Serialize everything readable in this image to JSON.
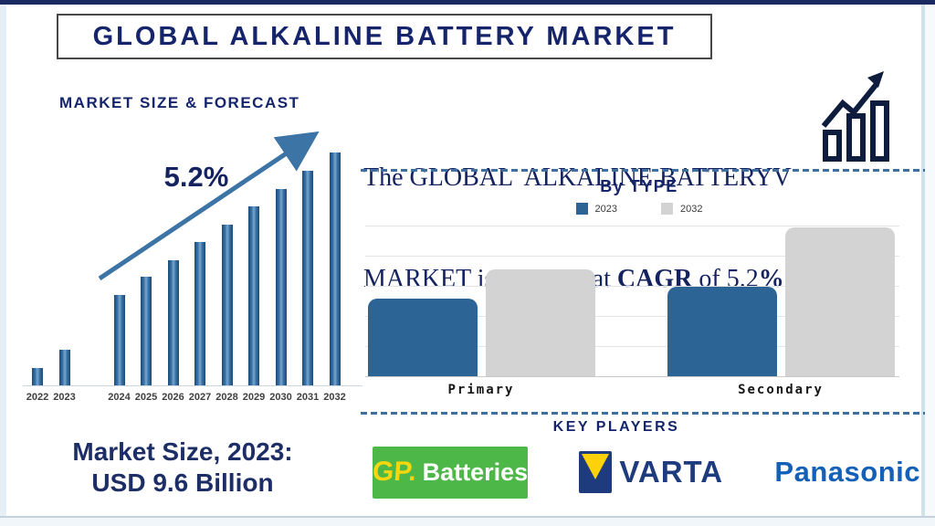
{
  "page": {
    "title": "GLOBAL ALKALINE BATTERY MARKET"
  },
  "left": {
    "section_title": "MARKET SIZE & FORECAST",
    "cagr_label": "5.2%",
    "market_size_line1": "Market Size, 2023:",
    "market_size_line2": "USD 9.6 Billion"
  },
  "right": {
    "growth_line1": "The GLOBAL  ALKALINE BATTERYV",
    "growth_line2_prefix": "MARKET is growing at ",
    "growth_line2_bold": "CAGR",
    "growth_line2_mid": " of 5.2",
    "growth_line2_suffix_bold": "%",
    "by_type_title": "By TYPE",
    "key_players_title": "KEY PLAYERS"
  },
  "logos": {
    "gp": {
      "prefix": "GP.",
      "suffix": "Batteries",
      "bg": "#4db848",
      "prefix_color": "#f6d60e",
      "suffix_color": "#ffffff"
    },
    "varta": {
      "text": "VARTA",
      "color": "#1e3c7d",
      "icon_bg": "#1e3c7d",
      "icon_triangle": "#ffd10a"
    },
    "panasonic": {
      "text": "Panasonic",
      "color": "#1560b7"
    }
  },
  "colors": {
    "navy_text": "#15246b",
    "bar_blue": "#2c6496",
    "bar_gray": "#d3d3d3",
    "dash_blue": "#3f6f9e",
    "arrow_blue": "#3d74a6"
  },
  "chart_data": [
    {
      "type": "bar",
      "title": "MARKET SIZE & FORECAST",
      "categories": [
        "2022",
        "2023",
        "2024",
        "2025",
        "2026",
        "2027",
        "2028",
        "2029",
        "2030",
        "2031",
        "2032"
      ],
      "values": [
        7.5,
        15.3,
        38.8,
        46.7,
        53.7,
        61.6,
        69.0,
        76.9,
        84.3,
        92.2,
        100
      ],
      "annotation": "5.2%",
      "known_point": "Market Size 2023 = USD 9.6 Billion, CAGR 5.2%",
      "note": "stylized forecast bars, no y-axis shown; values are relative heights with 2032 = 100; visual gap between 2023 and 2024",
      "xlabel": "",
      "ylabel": "",
      "grid": false,
      "ylim": [
        0,
        100
      ]
    },
    {
      "type": "bar",
      "title": "By TYPE",
      "categories": [
        "Primary",
        "Secondary"
      ],
      "series": [
        {
          "name": "2023",
          "values": [
            52,
            60
          ],
          "color": "#2c6496"
        },
        {
          "name": "2032",
          "values": [
            72,
            100
          ],
          "color": "#d3d3d3"
        }
      ],
      "ylim": [
        0,
        100
      ],
      "grid": true,
      "legend_position": "top",
      "note": "no y-axis tick labels shown; values are relative heights with Secondary 2032 = 100"
    }
  ]
}
